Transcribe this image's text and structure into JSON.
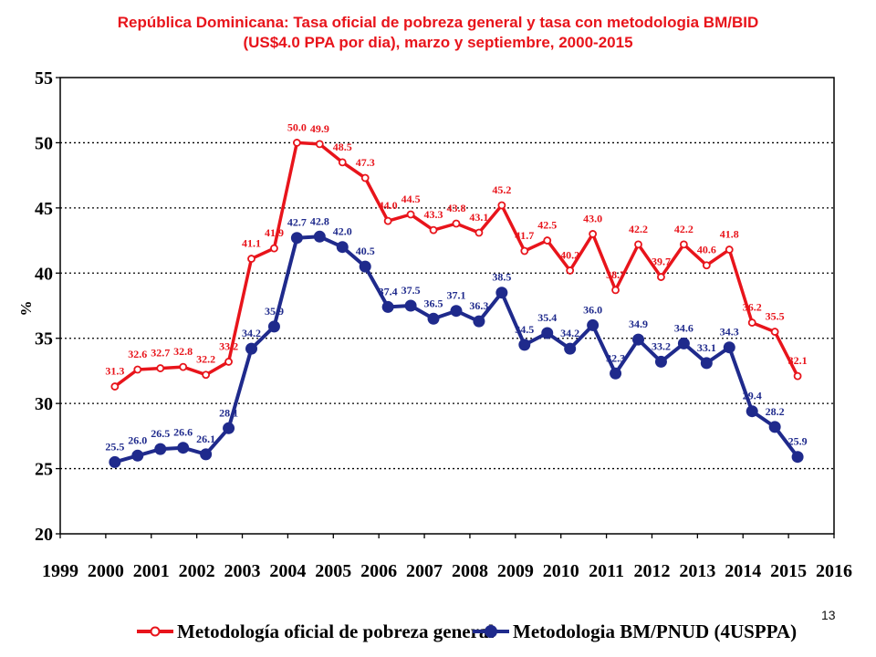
{
  "title": {
    "line1": "República Dominicana: Tasa oficial de pobreza general y tasa con metodologia BM/BID",
    "line2": "(US$4.0 PPA por dia), marzo y septiembre, 2000-2015"
  },
  "page_number": "13",
  "colors": {
    "official": "#e8141b",
    "bm": "#1f2a8c",
    "grid": "#000000"
  },
  "chart_data": {
    "type": "line",
    "ylabel": "%",
    "xlabel": "",
    "ylim": [
      20,
      55
    ],
    "xlim": [
      1999,
      2016
    ],
    "y_ticks": [
      "20",
      "25",
      "30",
      "35",
      "40",
      "45",
      "50",
      "55"
    ],
    "x_ticks": [
      "1999",
      "2000",
      "2001",
      "2002",
      "2003",
      "2004",
      "2005",
      "2006",
      "2007",
      "2008",
      "2009",
      "2010",
      "2011",
      "2012",
      "2013",
      "2014",
      "2015",
      "2016"
    ],
    "grid": "horizontal dotted",
    "legend_position": "bottom",
    "x": [
      2000.2,
      2000.7,
      2001.2,
      2001.7,
      2002.2,
      2002.7,
      2003.2,
      2003.7,
      2004.2,
      2004.7,
      2005.2,
      2005.7,
      2006.2,
      2006.7,
      2007.2,
      2007.7,
      2008.2,
      2008.7,
      2009.2,
      2009.7,
      2010.2,
      2010.7,
      2011.2,
      2011.7,
      2012.2,
      2012.7,
      2013.2,
      2013.7,
      2014.2,
      2014.7,
      2015.2
    ],
    "series": [
      {
        "name": "Metodología oficial de pobreza general",
        "values": [
          31.3,
          32.6,
          32.7,
          32.8,
          32.2,
          33.2,
          41.1,
          41.9,
          50.0,
          49.9,
          48.5,
          47.3,
          44.0,
          44.5,
          43.3,
          43.8,
          43.1,
          45.2,
          41.7,
          42.5,
          40.2,
          43.0,
          38.7,
          42.2,
          39.7,
          42.2,
          40.6,
          41.8,
          36.2,
          35.5,
          32.1
        ],
        "labels": [
          "31.3",
          "32.6",
          "32.7",
          "32.8",
          "32.2",
          "33.2",
          "41.1",
          "41.9",
          "50.0",
          "49.9",
          "48.5",
          "47.3",
          "44.0",
          "44.5",
          "43.3",
          "43.8",
          "43.1",
          "45.2",
          "41.7",
          "42.5",
          "40.2",
          "43.0",
          "38.7",
          "42.2",
          "39.7",
          "42.2",
          "40.6",
          "41.8",
          "36.2",
          "35.5",
          "32.1"
        ]
      },
      {
        "name": "Metodologia BM/PNUD (4USPPA)",
        "values": [
          25.5,
          26.0,
          26.5,
          26.6,
          26.1,
          28.1,
          34.2,
          35.9,
          42.7,
          42.8,
          42.0,
          40.5,
          37.4,
          37.5,
          36.5,
          37.1,
          36.3,
          38.5,
          34.5,
          35.4,
          34.2,
          36.0,
          32.3,
          34.9,
          33.2,
          34.6,
          33.1,
          34.3,
          29.4,
          28.2,
          25.9
        ],
        "labels": [
          "25.5",
          "26.0",
          "26.5",
          "26.6",
          "26.1",
          "28.1",
          "34.2",
          "35.9",
          "42.7",
          "42.8",
          "42.0",
          "40.5",
          "37.4",
          "37.5",
          "36.5",
          "37.1",
          "36.3",
          "38.5",
          "34.5",
          "35.4",
          "34.2",
          "36.0",
          "32.3",
          "34.9",
          "33.2",
          "34.6",
          "33.1",
          "34.3",
          "29.4",
          "28.2",
          "25.9"
        ]
      }
    ]
  }
}
